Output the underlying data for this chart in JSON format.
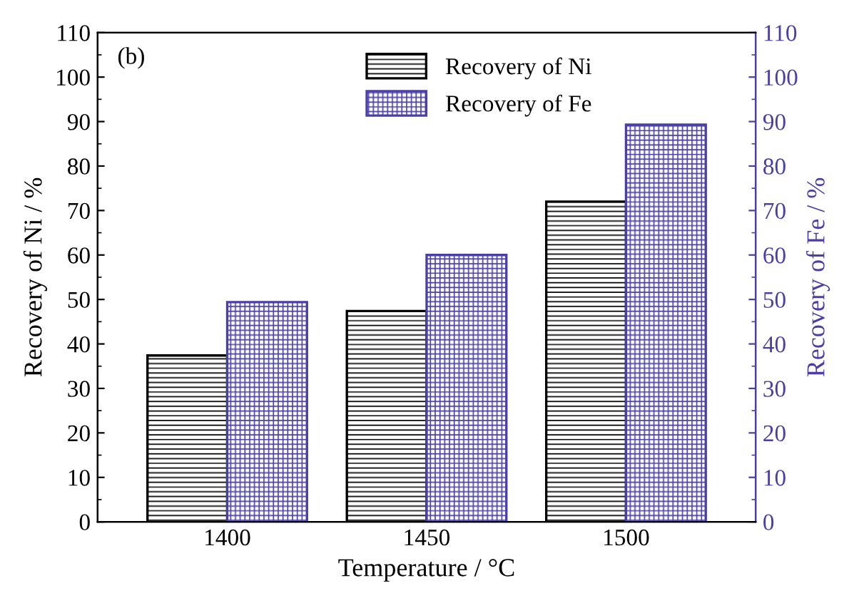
{
  "chart_data": {
    "type": "bar",
    "xlabel": "Temperature / °C",
    "ylabel": "Recovery of Ni / %",
    "y2label": "Recovery of Fe / %",
    "annotations": [
      "(b)"
    ],
    "categories": [
      "1400",
      "1450",
      "1500"
    ],
    "series": [
      {
        "name": "Recovery of Ni",
        "color": "#000000",
        "values": [
          37.4,
          47.4,
          72
        ]
      },
      {
        "name": "Recovery of Fe",
        "color": "#4a3fa6",
        "axis": "y2",
        "values": [
          49.4,
          60,
          89.3
        ]
      }
    ],
    "ylim": [
      0,
      110
    ],
    "yticks": [
      0,
      10,
      20,
      30,
      40,
      50,
      60,
      70,
      80,
      90,
      100,
      110
    ],
    "y2lim": [
      0,
      110
    ],
    "y2ticks": [
      0,
      10,
      20,
      30,
      40,
      50,
      60,
      70,
      80,
      90,
      100,
      110
    ],
    "legend": "top",
    "grid": false
  }
}
